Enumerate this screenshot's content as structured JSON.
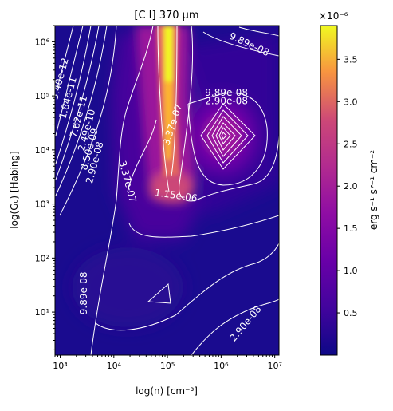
{
  "chart_data": {
    "type": "heatmap",
    "title": "[C I] 370 μm",
    "xlabel": "log(n) [cm⁻³]",
    "ylabel": "log(G₀) [Habing]",
    "x_scale": "log",
    "y_scale": "log",
    "xlim": [
      800,
      12000000
    ],
    "ylim": [
      1.6,
      2000000
    ],
    "x_ticks": [
      1000,
      10000,
      100000,
      1000000,
      10000000
    ],
    "x_tick_labels": [
      "10³",
      "10⁴",
      "10⁵",
      "10⁶",
      "10⁷"
    ],
    "y_ticks": [
      10,
      100,
      1000,
      10000,
      100000,
      1000000
    ],
    "y_tick_labels": [
      "10¹",
      "10²",
      "10³",
      "10⁴",
      "10⁵",
      "10⁶"
    ],
    "colorbar": {
      "label": "erg s⁻¹ sr⁻¹ cm⁻²",
      "multiplier": "×10⁻⁶",
      "colormap": "plasma",
      "vmin": 0.0,
      "vmax": 3.9,
      "ticks": [
        0.5,
        1.0,
        1.5,
        2.0,
        2.5,
        3.0,
        3.5
      ],
      "tick_labels": [
        "0.5",
        "1.0",
        "1.5",
        "2.0",
        "2.5",
        "3.0",
        "3.5"
      ]
    },
    "peak_ridge": {
      "log_n": 5.0,
      "log_G0_range": [
        3.0,
        6.3
      ],
      "value": 3.9
    },
    "secondary_peak": {
      "log_n": 6.0,
      "log_G0": 4.25
    },
    "contour_labels": [
      {
        "text": "9.89e-08",
        "log_n": 6.5,
        "log_G0": 5.9
      },
      {
        "text": "9.89e-08",
        "log_n": 6.1,
        "log_G0": 5.0
      },
      {
        "text": "2.90e-08",
        "log_n": 6.1,
        "log_G0": 4.85
      },
      {
        "text": "3.37e-07",
        "log_n": 5.15,
        "log_G0": 4.45
      },
      {
        "text": "1.15e-06",
        "log_n": 5.15,
        "log_G0": 3.1
      },
      {
        "text": "3.37e-07",
        "log_n": 4.2,
        "log_G0": 3.4
      },
      {
        "text": "2.90e-08",
        "log_n": 6.5,
        "log_G0": 0.75
      },
      {
        "text": "9.89e-08",
        "log_n": 3.5,
        "log_G0": 1.35
      },
      {
        "text": "5.40e-12",
        "log_n": 3.05,
        "log_G0": 5.3
      },
      {
        "text": "1.84e-11",
        "log_n": 3.2,
        "log_G0": 4.95
      },
      {
        "text": "7.62e-11",
        "log_n": 3.4,
        "log_G0": 4.6
      },
      {
        "text": "2.49e-10",
        "log_n": 3.55,
        "log_G0": 4.35
      },
      {
        "text": "8.50e-09",
        "log_n": 3.6,
        "log_G0": 4.0
      },
      {
        "text": "2.90e-08",
        "log_n": 3.7,
        "log_G0": 3.75
      }
    ],
    "grid": false
  }
}
